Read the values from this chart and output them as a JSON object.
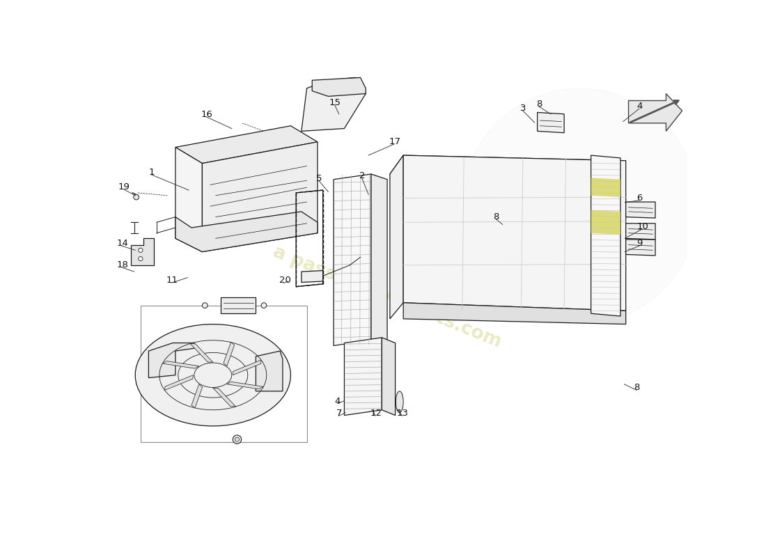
{
  "background_color": "#ffffff",
  "watermark_text": "a passion for parts.com",
  "watermark_color": "#e8e8c0",
  "line_color": "#1a1a1a",
  "label_fontsize": 9.5,
  "lw": 0.9,
  "yellow_highlight": "#d4d460",
  "light_fill": "#f2f2f2",
  "mid_fill": "#e8e8e8",
  "labels": [
    [
      "19",
      45,
      570,
      70,
      565
    ],
    [
      "1",
      100,
      590,
      155,
      565
    ],
    [
      "16",
      195,
      700,
      245,
      685
    ],
    [
      "15",
      435,
      720,
      450,
      710
    ],
    [
      "17",
      545,
      650,
      510,
      635
    ],
    [
      "5",
      410,
      580,
      420,
      565
    ],
    [
      "2",
      490,
      585,
      500,
      560
    ],
    [
      "3",
      790,
      710,
      810,
      695
    ],
    [
      "8",
      820,
      720,
      845,
      710
    ],
    [
      "4",
      1010,
      715,
      985,
      695
    ],
    [
      "6",
      1010,
      545,
      985,
      545
    ],
    [
      "10",
      1010,
      490,
      985,
      480
    ],
    [
      "9",
      1010,
      460,
      985,
      455
    ],
    [
      "8",
      740,
      510,
      750,
      505
    ],
    [
      "8",
      1005,
      195,
      985,
      210
    ],
    [
      "14",
      38,
      460,
      72,
      458
    ],
    [
      "18",
      38,
      420,
      70,
      418
    ],
    [
      "11",
      130,
      390,
      165,
      405
    ],
    [
      "4",
      445,
      165,
      462,
      175
    ],
    [
      "7",
      448,
      142,
      463,
      152
    ],
    [
      "12",
      510,
      142,
      515,
      155
    ],
    [
      "13",
      560,
      142,
      558,
      158
    ],
    [
      "20",
      340,
      390,
      352,
      398
    ]
  ]
}
